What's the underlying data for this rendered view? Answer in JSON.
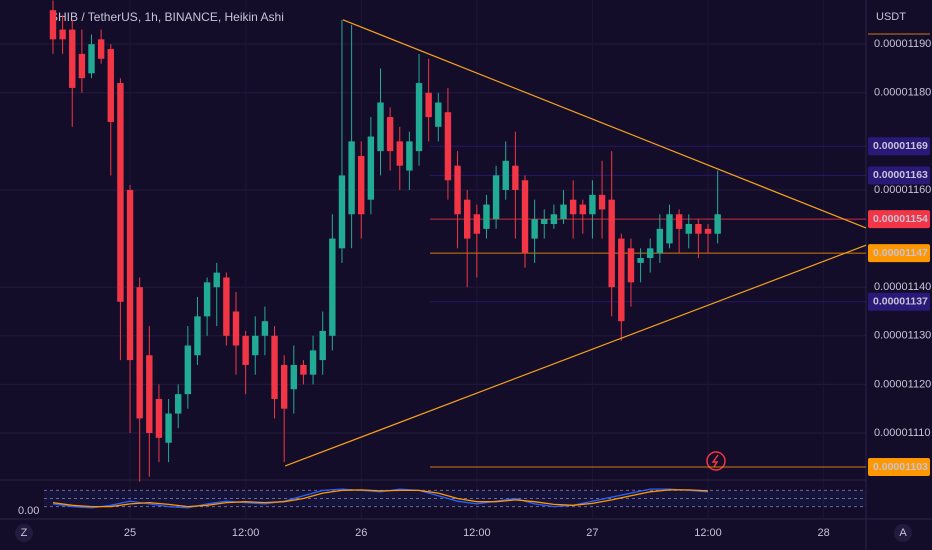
{
  "chart_data": {
    "type": "candlestick",
    "title": "SHIB / TetherUS, 1h, BINANCE, Heikin Ashi",
    "axis_unit": "USDT",
    "up_color": "#22ab94",
    "down_color": "#f23645",
    "x": [
      -8,
      -7,
      -6,
      -5,
      -4,
      -3,
      -2,
      -1,
      0,
      1,
      2,
      3,
      4,
      5,
      6,
      7,
      8,
      9,
      10,
      11,
      12,
      13,
      14,
      15,
      16,
      17,
      18,
      19,
      20,
      21,
      22,
      23,
      24,
      25,
      26,
      27,
      28,
      29,
      30,
      31,
      32,
      33,
      34,
      35,
      36,
      37,
      38,
      39,
      40,
      41,
      42,
      43,
      44,
      45,
      46,
      47,
      48,
      49,
      50,
      51,
      52,
      53,
      54,
      55,
      56,
      57,
      58,
      59,
      60,
      61
    ],
    "open": [
      1.197e-05,
      1.193e-05,
      1.193e-05,
      1.188e-05,
      1.184e-05,
      1.191e-05,
      1.189e-05,
      1.182e-05,
      1.16e-05,
      1.14e-05,
      1.126e-05,
      1.117e-05,
      1.108e-05,
      1.114e-05,
      1.118e-05,
      1.126e-05,
      1.134e-05,
      1.14e-05,
      1.142e-05,
      1.135e-05,
      1.13e-05,
      1.126e-05,
      1.13e-05,
      1.13e-05,
      1.124e-05,
      1.119e-05,
      1.124e-05,
      1.122e-05,
      1.125e-05,
      1.13e-05,
      1.148e-05,
      1.155e-05,
      1.167e-05,
      1.158e-05,
      1.168e-05,
      1.175e-05,
      1.17e-05,
      1.164e-05,
      1.168e-05,
      1.18e-05,
      1.173e-05,
      1.176e-05,
      1.165e-05,
      1.158e-05,
      1.155e-05,
      1.152e-05,
      1.154e-05,
      1.16e-05,
      1.165e-05,
      1.162e-05,
      1.15e-05,
      1.153e-05,
      1.153e-05,
      1.154e-05,
      1.158e-05,
      1.157e-05,
      1.155e-05,
      1.159e-05,
      1.158e-05,
      1.15e-05,
      1.148e-05,
      1.145e-05,
      1.146e-05,
      1.147e-05,
      1.149e-05,
      1.155e-05,
      1.151e-05,
      1.153e-05,
      1.152e-05,
      1.151e-05
    ],
    "high": [
      1.199e-05,
      1.196e-05,
      1.195e-05,
      1.193e-05,
      1.192e-05,
      1.193e-05,
      1.19e-05,
      1.183e-05,
      1.161e-05,
      1.142e-05,
      1.132e-05,
      1.12e-05,
      1.117e-05,
      1.12e-05,
      1.132e-05,
      1.138e-05,
      1.142e-05,
      1.145e-05,
      1.143e-05,
      1.139e-05,
      1.131e-05,
      1.134e-05,
      1.136e-05,
      1.132e-05,
      1.126e-05,
      1.128e-05,
      1.125e-05,
      1.13e-05,
      1.135e-05,
      1.155e-05,
      1.195e-05,
      1.194e-05,
      1.17e-05,
      1.175e-05,
      1.185e-05,
      1.177e-05,
      1.173e-05,
      1.172e-05,
      1.188e-05,
      1.187e-05,
      1.18e-05,
      1.181e-05,
      1.168e-05,
      1.16e-05,
      1.157e-05,
      1.159e-05,
      1.165e-05,
      1.17e-05,
      1.172e-05,
      1.163e-05,
      1.158e-05,
      1.156e-05,
      1.157e-05,
      1.16e-05,
      1.162e-05,
      1.158e-05,
      1.162e-05,
      1.166e-05,
      1.168e-05,
      1.151e-05,
      1.15e-05,
      1.148e-05,
      1.15e-05,
      1.155e-05,
      1.157e-05,
      1.156e-05,
      1.155e-05,
      1.154e-05,
      1.153e-05,
      1.164e-05
    ],
    "low": [
      1.188e-05,
      1.188e-05,
      1.173e-05,
      1.18e-05,
      1.183e-05,
      1.186e-05,
      1.163e-05,
      1.125e-05,
      1.11e-05,
      1.1e-05,
      1.101e-05,
      1.104e-05,
      1.104e-05,
      1.111e-05,
      1.115e-05,
      1.124e-05,
      1.13e-05,
      1.132e-05,
      1.128e-05,
      1.122e-05,
      1.118e-05,
      1.122e-05,
      1.126e-05,
      1.113e-05,
      1.104e-05,
      1.114e-05,
      1.12e-05,
      1.12e-05,
      1.122e-05,
      1.127e-05,
      1.145e-05,
      1.148e-05,
      1.15e-05,
      1.155e-05,
      1.163e-05,
      1.164e-05,
      1.16e-05,
      1.16e-05,
      1.165e-05,
      1.17e-05,
      1.17e-05,
      1.158e-05,
      1.148e-05,
      1.14e-05,
      1.142e-05,
      1.15e-05,
      1.152e-05,
      1.158e-05,
      1.15e-05,
      1.144e-05,
      1.145e-05,
      1.15e-05,
      1.152e-05,
      1.153e-05,
      1.15e-05,
      1.151e-05,
      1.15e-05,
      1.15e-05,
      1.134e-05,
      1.129e-05,
      1.136e-05,
      1.141e-05,
      1.143e-05,
      1.145e-05,
      1.148e-05,
      1.147e-05,
      1.148e-05,
      1.146e-05,
      1.147e-05,
      1.149e-05
    ],
    "close": [
      1.191e-05,
      1.191e-05,
      1.181e-05,
      1.183e-05,
      1.19e-05,
      1.187e-05,
      1.174e-05,
      1.137e-05,
      1.125e-05,
      1.113e-05,
      1.11e-05,
      1.109e-05,
      1.114e-05,
      1.118e-05,
      1.128e-05,
      1.134e-05,
      1.141e-05,
      1.143e-05,
      1.13e-05,
      1.128e-05,
      1.124e-05,
      1.13e-05,
      1.133e-05,
      1.117e-05,
      1.115e-05,
      1.124e-05,
      1.122e-05,
      1.127e-05,
      1.131e-05,
      1.15e-05,
      1.163e-05,
      1.17e-05,
      1.155e-05,
      1.171e-05,
      1.178e-05,
      1.168e-05,
      1.165e-05,
      1.17e-05,
      1.182e-05,
      1.175e-05,
      1.178e-05,
      1.162e-05,
      1.155e-05,
      1.15e-05,
      1.151e-05,
      1.157e-05,
      1.163e-05,
      1.166e-05,
      1.16e-05,
      1.147e-05,
      1.154e-05,
      1.154e-05,
      1.155e-05,
      1.157e-05,
      1.155e-05,
      1.155e-05,
      1.159e-05,
      1.156e-05,
      1.14e-05,
      1.133e-05,
      1.141e-05,
      1.146e-05,
      1.148e-05,
      1.152e-05,
      1.155e-05,
      1.152e-05,
      1.153e-05,
      1.151e-05,
      1.151e-05,
      1.155e-05
    ],
    "xlim": [
      -13.5,
      76.4
    ],
    "xticks": [
      {
        "value": 0,
        "label": "25"
      },
      {
        "value": 12,
        "label": "12:00"
      },
      {
        "value": 24,
        "label": "26"
      },
      {
        "value": 36,
        "label": "12:00"
      },
      {
        "value": 48,
        "label": "27"
      },
      {
        "value": 60,
        "label": "12:00"
      },
      {
        "value": 72,
        "label": "28"
      }
    ],
    "ylim": [
      1.10074e-05,
      1.19909e-05
    ],
    "yticks": [
      {
        "value": 1.19e-05,
        "label": "0.00001190"
      },
      {
        "value": 1.18e-05,
        "label": "0.00001180"
      },
      {
        "value": 1.16e-05,
        "label": "0.00001160"
      },
      {
        "value": 1.14e-05,
        "label": "0.00001140"
      },
      {
        "value": 1.13e-05,
        "label": "0.00001130"
      },
      {
        "value": 1.12e-05,
        "label": "0.00001120"
      },
      {
        "value": 1.11e-05,
        "label": "0.00001110"
      }
    ],
    "grid": true,
    "price_lines": [
      {
        "value": 1.169e-05,
        "label": "0.00001169",
        "color": "#2a1a78"
      },
      {
        "value": 1.163e-05,
        "label": "0.00001163",
        "color": "#2a1a78"
      },
      {
        "value": 1.154e-05,
        "label": "0.00001154",
        "color": "#f23645"
      },
      {
        "value": 1.147e-05,
        "label": "0.00001147",
        "color": "#ff9800"
      },
      {
        "value": 1.137e-05,
        "label": "0.00001137",
        "color": "#2a1a78"
      },
      {
        "value": 1.103e-05,
        "label": "0.00001103",
        "color": "#ff9800"
      }
    ],
    "trendlines": [
      {
        "color": "#f7a21b",
        "x": [
          22.1,
          76.4
        ],
        "y": [
          1.19502e-05,
          1.15219e-05
        ]
      },
      {
        "color": "#f7a21b",
        "x": [
          16.1,
          76.4
        ],
        "y": [
          1.10321e-05,
          1.14864e-05
        ]
      }
    ],
    "indicator": {
      "label": "0.00",
      "ylim": [
        0,
        100
      ],
      "bands": [
        80,
        50,
        20
      ],
      "x": [
        -8,
        -6,
        -4,
        -2,
        0,
        2,
        4,
        6,
        8,
        10,
        12,
        14,
        16,
        18,
        20,
        22,
        24,
        26,
        28,
        30,
        32,
        34,
        36,
        38,
        40,
        42,
        44,
        46,
        48,
        50,
        52,
        54,
        56,
        58,
        60
      ],
      "series": [
        {
          "color": "#2962ff",
          "values": [
            30,
            20,
            15,
            25,
            40,
            30,
            20,
            15,
            30,
            40,
            35,
            30,
            40,
            60,
            80,
            85,
            80,
            75,
            85,
            80,
            60,
            40,
            30,
            40,
            50,
            30,
            20,
            25,
            40,
            55,
            70,
            85,
            85,
            80,
            75
          ]
        },
        {
          "color": "#ff9800",
          "values": [
            35,
            25,
            20,
            20,
            30,
            35,
            28,
            20,
            25,
            35,
            38,
            35,
            38,
            50,
            70,
            80,
            82,
            78,
            80,
            80,
            70,
            50,
            38,
            38,
            45,
            38,
            28,
            25,
            32,
            45,
            60,
            75,
            82,
            82,
            78
          ]
        }
      ]
    },
    "corner_left": "Z",
    "corner_right": "A"
  }
}
